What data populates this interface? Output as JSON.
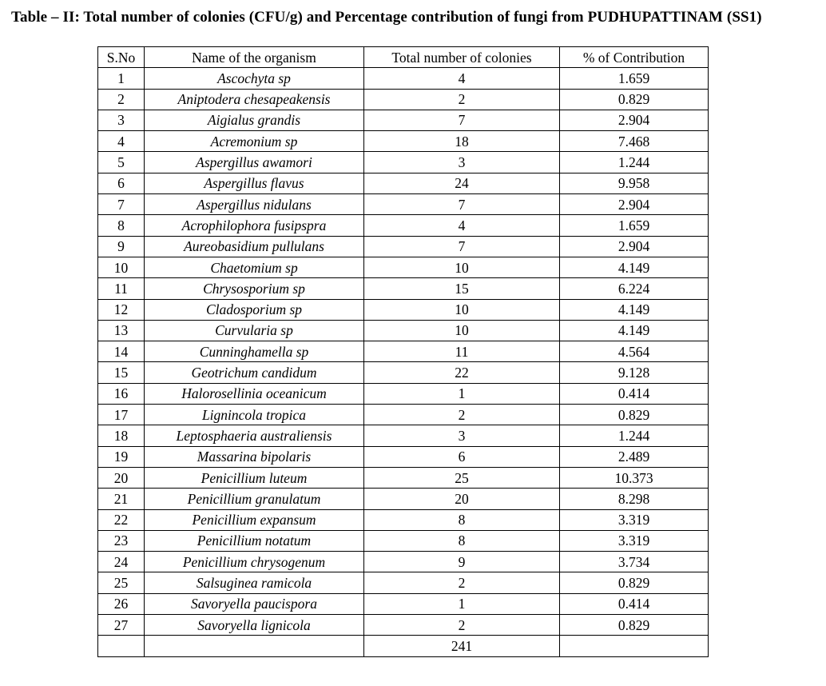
{
  "caption": "Table – II: Total number of colonies (CFU/g) and Percentage contribution of fungi from PUDHUPATTINAM (SS1)",
  "table": {
    "headers": [
      "S.No",
      "Name of the organism",
      "Total number of colonies",
      "% of Contribution"
    ],
    "rows": [
      {
        "sno": "1",
        "organism": "Ascochyta sp",
        "colonies": "4",
        "contribution": "1.659"
      },
      {
        "sno": "2",
        "organism": "Aniptodera chesapeakensis",
        "colonies": "2",
        "contribution": "0.829"
      },
      {
        "sno": "3",
        "organism": "Aigialus grandis",
        "colonies": "7",
        "contribution": "2.904"
      },
      {
        "sno": "4",
        "organism": "Acremonium sp",
        "colonies": "18",
        "contribution": "7.468"
      },
      {
        "sno": "5",
        "organism": "Aspergillus awamori",
        "colonies": "3",
        "contribution": "1.244"
      },
      {
        "sno": "6",
        "organism": "Aspergillus flavus",
        "colonies": "24",
        "contribution": "9.958"
      },
      {
        "sno": "7",
        "organism": "Aspergillus nidulans",
        "colonies": "7",
        "contribution": "2.904"
      },
      {
        "sno": "8",
        "organism": "Acrophilophora fusipspra",
        "colonies": "4",
        "contribution": "1.659"
      },
      {
        "sno": "9",
        "organism": "Aureobasidium pullulans",
        "colonies": "7",
        "contribution": "2.904"
      },
      {
        "sno": "10",
        "organism": "Chaetomium sp",
        "colonies": "10",
        "contribution": "4.149"
      },
      {
        "sno": "11",
        "organism": "Chrysosporium sp",
        "colonies": "15",
        "contribution": "6.224"
      },
      {
        "sno": "12",
        "organism": "Cladosporium sp",
        "colonies": "10",
        "contribution": "4.149"
      },
      {
        "sno": "13",
        "organism": "Curvularia sp",
        "colonies": "10",
        "contribution": "4.149"
      },
      {
        "sno": "14",
        "organism": "Cunninghamella sp",
        "colonies": "11",
        "contribution": "4.564"
      },
      {
        "sno": "15",
        "organism": "Geotrichum candidum",
        "colonies": "22",
        "contribution": "9.128"
      },
      {
        "sno": "16",
        "organism": "Halorosellinia oceanicum",
        "colonies": "1",
        "contribution": "0.414"
      },
      {
        "sno": "17",
        "organism": "Lignincola tropica",
        "colonies": "2",
        "contribution": "0.829"
      },
      {
        "sno": "18",
        "organism": "Leptosphaeria australiensis",
        "colonies": "3",
        "contribution": "1.244"
      },
      {
        "sno": "19",
        "organism": "Massarina bipolaris",
        "colonies": "6",
        "contribution": "2.489"
      },
      {
        "sno": "20",
        "organism": "Penicillium luteum",
        "colonies": "25",
        "contribution": "10.373"
      },
      {
        "sno": "21",
        "organism": "Penicillium granulatum",
        "colonies": "20",
        "contribution": "8.298"
      },
      {
        "sno": "22",
        "organism": "Penicillium expansum",
        "colonies": "8",
        "contribution": "3.319"
      },
      {
        "sno": "23",
        "organism": "Penicillium notatum",
        "colonies": "8",
        "contribution": "3.319"
      },
      {
        "sno": "24",
        "organism": "Penicillium chrysogenum",
        "colonies": "9",
        "contribution": "3.734"
      },
      {
        "sno": "25",
        "organism": "Salsuginea ramicola",
        "colonies": "2",
        "contribution": "0.829"
      },
      {
        "sno": "26",
        "organism": "Savoryella paucispora",
        "colonies": "1",
        "contribution": "0.414"
      },
      {
        "sno": "27",
        "organism": "Savoryella lignicola",
        "colonies": "2",
        "contribution": "0.829"
      }
    ],
    "total_colonies": "241"
  }
}
